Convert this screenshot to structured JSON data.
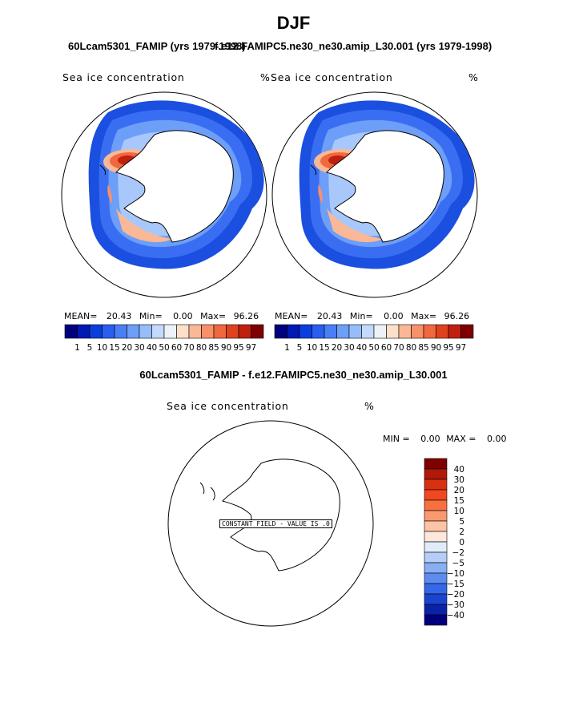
{
  "figure": {
    "season": "DJF",
    "title_left": "60Lcam5301_FAMIP (yrs 1979-1998)",
    "title_right": "f.e12.FAMIPC5.ne30_ne30.amip_L30.001 (yrs 1979-1998)",
    "diff_title": "60Lcam5301_FAMIP - f.e12.FAMIPC5.ne30_ne30.amip_L30.001"
  },
  "panels": {
    "left": {
      "variable": "Sea ice concentration",
      "units": "%",
      "mean_label": "MEAN=",
      "mean": "20.43",
      "min_label": "Min=",
      "min": "0.00",
      "max_label": "Max=",
      "max": "96.26"
    },
    "right": {
      "variable": "Sea ice concentration",
      "units": "%",
      "mean_label": "MEAN=",
      "mean": "20.43",
      "min_label": "Min=",
      "min": "0.00",
      "max_label": "Max=",
      "max": "96.26"
    },
    "diff": {
      "variable": "Sea ice concentration",
      "units": "%",
      "min_label": "MIN =",
      "min": "0.00",
      "max_label": "MAX =",
      "max": "0.00",
      "constant_field_label": "CONSTANT FIELD - VALUE IS .0"
    }
  },
  "chart_data": [
    {
      "type": "heatmap",
      "projection": "south-polar-stereographic",
      "title": "Sea ice concentration",
      "units": "%",
      "stats": {
        "mean": 20.43,
        "min": 0.0,
        "max": 96.26
      },
      "colorbar": {
        "orientation": "horizontal",
        "levels": [
          1,
          5,
          10,
          15,
          20,
          30,
          40,
          50,
          60,
          70,
          80,
          85,
          90,
          95,
          97
        ],
        "colors": [
          "#00007e",
          "#0018b4",
          "#0a3ede",
          "#2a5ef0",
          "#4a7ef5",
          "#6d9ef8",
          "#97bcfa",
          "#c4d9fc",
          "#eef2f8",
          "#fde0cc",
          "#fbb896",
          "#f8906a",
          "#f0683e",
          "#e0421e",
          "#c0200e",
          "#7e0000"
        ]
      }
    },
    {
      "type": "heatmap",
      "projection": "south-polar-stereographic",
      "title": "Sea ice concentration",
      "units": "%",
      "stats": {
        "mean": 20.43,
        "min": 0.0,
        "max": 96.26
      },
      "colorbar": {
        "orientation": "horizontal",
        "levels": [
          1,
          5,
          10,
          15,
          20,
          30,
          40,
          50,
          60,
          70,
          80,
          85,
          90,
          95,
          97
        ],
        "colors": [
          "#00007e",
          "#0018b4",
          "#0a3ede",
          "#2a5ef0",
          "#4a7ef5",
          "#6d9ef8",
          "#97bcfa",
          "#c4d9fc",
          "#eef2f8",
          "#fde0cc",
          "#fbb896",
          "#f8906a",
          "#f0683e",
          "#e0421e",
          "#c0200e",
          "#7e0000"
        ]
      }
    },
    {
      "type": "heatmap",
      "projection": "south-polar-stereographic",
      "title": "Sea ice concentration",
      "units": "%",
      "stats": {
        "min": 0.0,
        "max": 0.0
      },
      "annotation": "CONSTANT FIELD - VALUE IS .0",
      "colorbar": {
        "orientation": "vertical",
        "levels": [
          40,
          30,
          20,
          15,
          10,
          5,
          2,
          0,
          -2,
          -5,
          -10,
          -15,
          -20,
          -30,
          -40
        ],
        "colors": [
          "#7e0000",
          "#b01808",
          "#d83010",
          "#f04820",
          "#f87040",
          "#fa9870",
          "#fcc4a4",
          "#fde8dc",
          "#e0ecfa",
          "#b4cef8",
          "#88aef4",
          "#5c8cf0",
          "#3468e8",
          "#1a44d0",
          "#0a22a8",
          "#00007e"
        ]
      }
    }
  ]
}
